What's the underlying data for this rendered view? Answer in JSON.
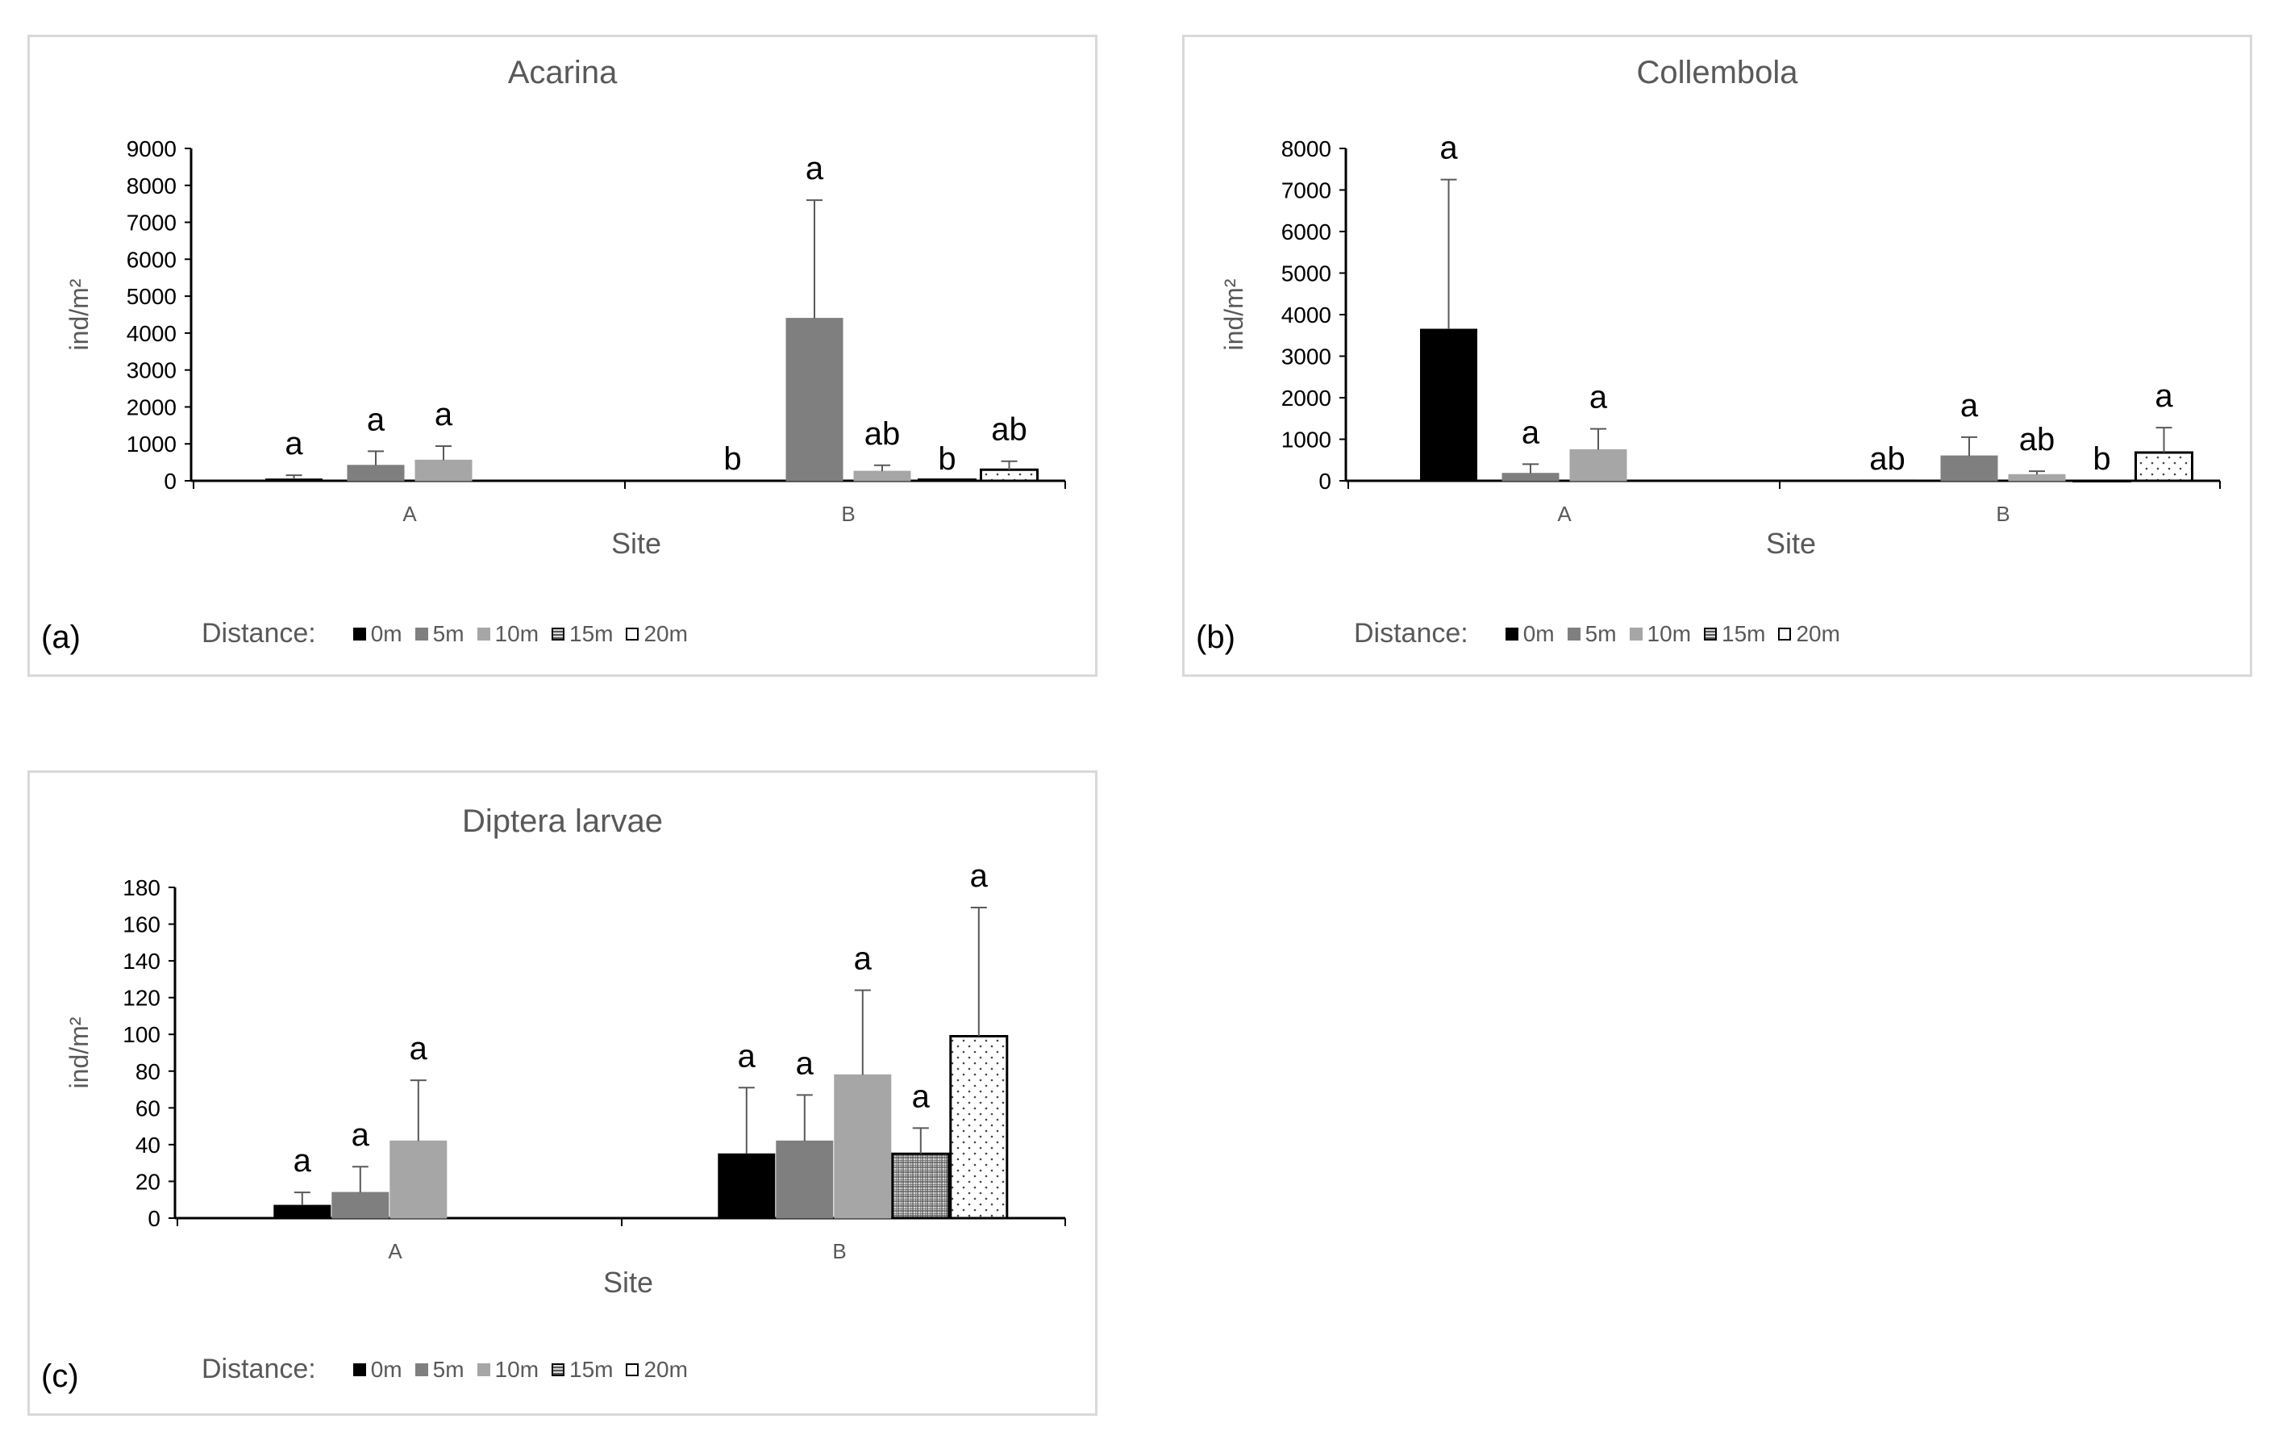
{
  "legend_title": "Distance:",
  "series_style": [
    {
      "name": "0m",
      "fill": "#000000",
      "stroke": "#000000",
      "pattern": "none"
    },
    {
      "name": "5m",
      "fill": "#7f7f7f",
      "stroke": "#7f7f7f",
      "pattern": "none"
    },
    {
      "name": "10m",
      "fill": "#a6a6a6",
      "stroke": "#a6a6a6",
      "pattern": "none"
    },
    {
      "name": "15m",
      "fill": "#d9d9d9",
      "stroke": "#000000",
      "pattern": "grid"
    },
    {
      "name": "20m",
      "fill": "#ffffff",
      "stroke": "#000000",
      "pattern": "dots"
    }
  ],
  "chart_data": [
    {
      "type": "bar",
      "panel_label": "(a)",
      "title": "Acarina",
      "xlabel": "Site",
      "ylabel": "ind/m²",
      "categories": [
        "A",
        "B"
      ],
      "ylim": [
        0,
        9000
      ],
      "yticks": [
        0,
        1000,
        2000,
        3000,
        4000,
        5000,
        6000,
        7000,
        8000,
        9000
      ],
      "series": [
        {
          "name": "0m",
          "values": [
            50,
            0
          ],
          "errors": [
            100,
            0
          ],
          "letters": [
            "a",
            "b"
          ]
        },
        {
          "name": "5m",
          "values": [
            420,
            4400
          ],
          "errors": [
            380,
            3200
          ],
          "letters": [
            "a",
            "a"
          ]
        },
        {
          "name": "10m",
          "values": [
            560,
            260
          ],
          "errors": [
            380,
            160
          ],
          "letters": [
            "a",
            "ab"
          ]
        },
        {
          "name": "15m",
          "values": [
            null,
            30
          ],
          "errors": [
            null,
            0
          ],
          "letters": [
            "",
            "b"
          ]
        },
        {
          "name": "20m",
          "values": [
            null,
            300
          ],
          "errors": [
            null,
            230
          ],
          "letters": [
            "",
            "ab"
          ]
        }
      ]
    },
    {
      "type": "bar",
      "panel_label": "(b)",
      "title": "Collembola",
      "xlabel": "Site",
      "ylabel": "ind/m²",
      "categories": [
        "A",
        "B"
      ],
      "ylim": [
        0,
        8000
      ],
      "yticks": [
        0,
        1000,
        2000,
        3000,
        4000,
        5000,
        6000,
        7000,
        8000
      ],
      "series": [
        {
          "name": "0m",
          "values": [
            3650,
            20
          ],
          "errors": [
            3600,
            0
          ],
          "letters": [
            "a",
            "ab"
          ]
        },
        {
          "name": "5m",
          "values": [
            180,
            600
          ],
          "errors": [
            220,
            450
          ],
          "letters": [
            "a",
            "a"
          ]
        },
        {
          "name": "10m",
          "values": [
            750,
            150
          ],
          "errors": [
            500,
            80
          ],
          "letters": [
            "a",
            "ab"
          ]
        },
        {
          "name": "15m",
          "values": [
            null,
            0
          ],
          "errors": [
            null,
            0
          ],
          "letters": [
            "",
            "b"
          ]
        },
        {
          "name": "20m",
          "values": [
            null,
            680
          ],
          "errors": [
            null,
            600
          ],
          "letters": [
            "",
            "a"
          ]
        }
      ]
    },
    {
      "type": "bar",
      "panel_label": "(c)",
      "title": "Diptera larvae",
      "xlabel": "Site",
      "ylabel": "ind/m²",
      "categories": [
        "A",
        "B"
      ],
      "ylim": [
        0,
        180
      ],
      "yticks": [
        0,
        20,
        40,
        60,
        80,
        100,
        120,
        140,
        160,
        180
      ],
      "series": [
        {
          "name": "0m",
          "values": [
            7,
            35
          ],
          "errors": [
            7,
            36
          ],
          "letters": [
            "a",
            "a"
          ]
        },
        {
          "name": "5m",
          "values": [
            14,
            42
          ],
          "errors": [
            14,
            25
          ],
          "letters": [
            "a",
            "a"
          ]
        },
        {
          "name": "10m",
          "values": [
            42,
            78
          ],
          "errors": [
            33,
            46
          ],
          "letters": [
            "a",
            "a"
          ]
        },
        {
          "name": "15m",
          "values": [
            null,
            35
          ],
          "errors": [
            null,
            14
          ],
          "letters": [
            "",
            "a"
          ]
        },
        {
          "name": "20m",
          "values": [
            null,
            99
          ],
          "errors": [
            null,
            70
          ],
          "letters": [
            "",
            "a"
          ]
        }
      ]
    }
  ]
}
